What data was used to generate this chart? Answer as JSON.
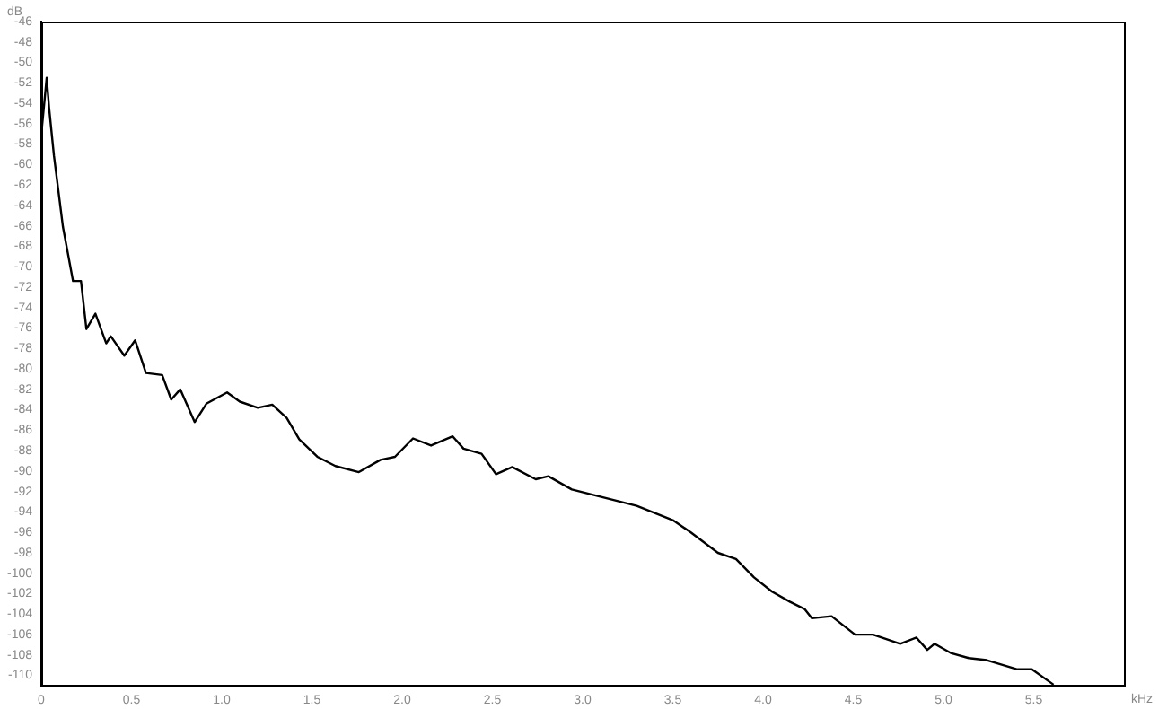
{
  "chart_data": {
    "type": "line",
    "xlabel": "kHz",
    "ylabel": "dB",
    "grid": false,
    "legend": false,
    "marker": "none",
    "line_style": "solid",
    "xlim": [
      0,
      6
    ],
    "ylim": [
      -111,
      -46
    ],
    "xticks": [
      0,
      {
        "value": 0.5,
        "label": "0.5"
      },
      {
        "value": 1,
        "label": "1.0"
      },
      {
        "value": 1.5,
        "label": "1.5"
      },
      {
        "value": 2,
        "label": "2.0"
      },
      {
        "value": 2.5,
        "label": "2.5"
      },
      {
        "value": 3,
        "label": "3.0"
      },
      {
        "value": 3.5,
        "label": "3.5"
      },
      {
        "value": 4,
        "label": "4.0"
      },
      {
        "value": 4.5,
        "label": "4.5"
      },
      {
        "value": 5,
        "label": "5.0"
      },
      {
        "value": 5.5,
        "label": "5.5"
      }
    ],
    "yticks": [
      -46,
      -48,
      -50,
      -52,
      -54,
      -56,
      -58,
      -60,
      -62,
      -64,
      -66,
      -68,
      -70,
      -72,
      -74,
      -76,
      -78,
      -80,
      -82,
      -84,
      -86,
      -88,
      -90,
      -92,
      -94,
      -96,
      -98,
      -100,
      -102,
      -104,
      -106,
      -108,
      -110
    ],
    "series": [
      {
        "color": "#000000",
        "x": [
          0.003,
          0.03,
          0.043,
          0.07,
          0.12,
          0.176,
          0.22,
          0.25,
          0.3,
          0.36,
          0.385,
          0.46,
          0.52,
          0.58,
          0.67,
          0.72,
          0.77,
          0.85,
          0.915,
          1.03,
          1.1,
          1.2,
          1.28,
          1.36,
          1.43,
          1.53,
          1.63,
          1.76,
          1.88,
          1.96,
          2.06,
          2.16,
          2.28,
          2.34,
          2.44,
          2.52,
          2.61,
          2.74,
          2.81,
          2.94,
          3.3,
          3.5,
          3.6,
          3.75,
          3.85,
          3.95,
          4.05,
          4.15,
          4.23,
          4.27,
          4.38,
          4.51,
          4.61,
          4.76,
          4.85,
          4.91,
          4.95,
          5.04,
          5.14,
          5.24,
          5.41,
          5.49,
          5.61
        ],
        "values": [
          -56.5,
          -51.5,
          -54.4,
          -59.1,
          -66.1,
          -71.4,
          -71.4,
          -76.1,
          -74.6,
          -77.5,
          -76.8,
          -78.7,
          -77.2,
          -80.4,
          -80.6,
          -83,
          -82,
          -85.2,
          -83.4,
          -82.3,
          -83.2,
          -83.8,
          -83.5,
          -84.8,
          -86.9,
          -88.6,
          -89.5,
          -90.1,
          -88.9,
          -88.6,
          -86.8,
          -87.5,
          -86.6,
          -87.8,
          -88.3,
          -90.3,
          -89.6,
          -90.8,
          -90.5,
          -91.8,
          -93.4,
          -94.8,
          -96,
          -98,
          -98.6,
          -100.4,
          -101.8,
          -102.8,
          -103.5,
          -104.4,
          -104.2,
          -106,
          -106,
          -106.9,
          -106.3,
          -107.5,
          -106.9,
          -107.8,
          -108.3,
          -108.5,
          -109.4,
          -109.4,
          -110.9
        ]
      }
    ]
  }
}
